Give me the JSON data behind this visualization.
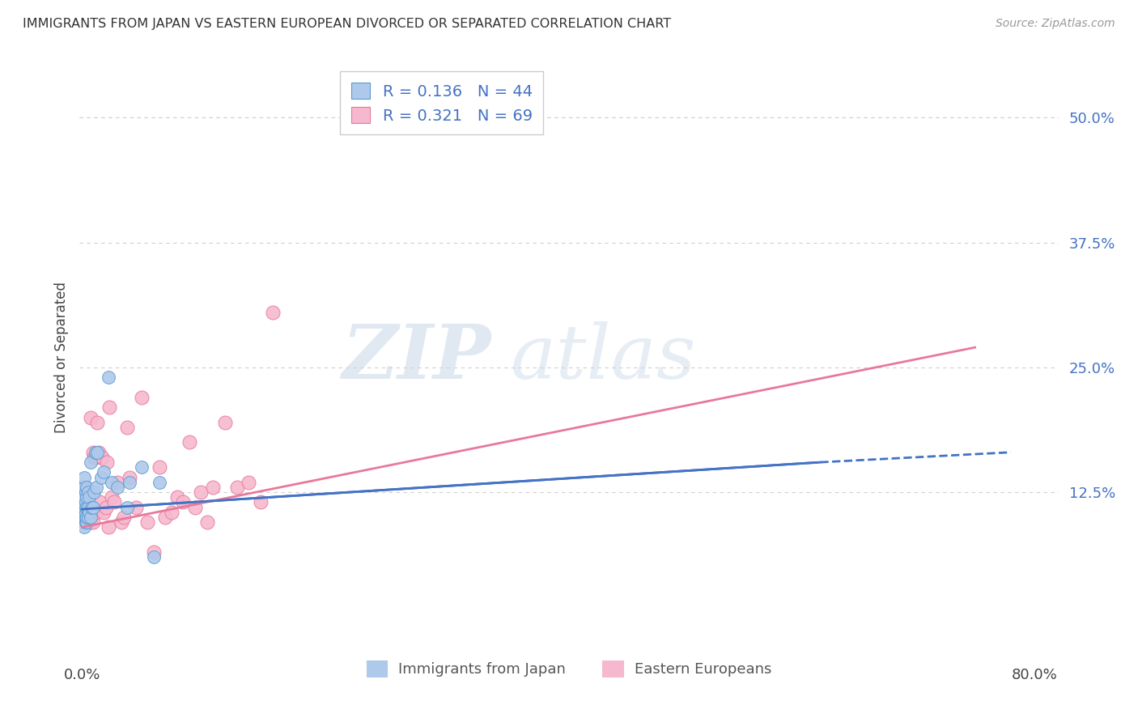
{
  "title": "IMMIGRANTS FROM JAPAN VS EASTERN EUROPEAN DIVORCED OR SEPARATED CORRELATION CHART",
  "source": "Source: ZipAtlas.com",
  "ylabel": "Divorced or Separated",
  "ytick_labels": [
    "12.5%",
    "25.0%",
    "37.5%",
    "50.0%"
  ],
  "ytick_values": [
    0.125,
    0.25,
    0.375,
    0.5
  ],
  "xtick_labels": [
    "0.0%",
    "80.0%"
  ],
  "xtick_values": [
    0.0,
    0.8
  ],
  "xlim": [
    -0.002,
    0.82
  ],
  "ylim": [
    -0.04,
    0.56
  ],
  "series1_label": "Immigrants from Japan",
  "series2_label": "Eastern Europeans",
  "series1_color": "#aec9ea",
  "series2_color": "#f5b8ce",
  "series1_edge_color": "#5b9bd5",
  "series2_edge_color": "#e8799a",
  "series1_line_color": "#4472c4",
  "series2_line_color": "#e8799a",
  "legend_r1": "R = 0.136",
  "legend_n1": "N = 44",
  "legend_r2": "R = 0.321",
  "legend_n2": "N = 69",
  "watermark_zip": "ZIP",
  "watermark_atlas": "atlas",
  "background_color": "#ffffff",
  "grid_color": "#d0d0d0",
  "japan_x": [
    0.001,
    0.001,
    0.001,
    0.001,
    0.002,
    0.002,
    0.002,
    0.002,
    0.002,
    0.002,
    0.003,
    0.003,
    0.003,
    0.003,
    0.003,
    0.003,
    0.004,
    0.004,
    0.004,
    0.004,
    0.004,
    0.005,
    0.005,
    0.005,
    0.006,
    0.006,
    0.007,
    0.007,
    0.008,
    0.009,
    0.01,
    0.011,
    0.012,
    0.013,
    0.016,
    0.018,
    0.022,
    0.025,
    0.03,
    0.038,
    0.04,
    0.05,
    0.06,
    0.065
  ],
  "japan_y": [
    0.105,
    0.11,
    0.115,
    0.12,
    0.09,
    0.1,
    0.11,
    0.12,
    0.13,
    0.14,
    0.095,
    0.1,
    0.105,
    0.11,
    0.115,
    0.125,
    0.095,
    0.1,
    0.11,
    0.12,
    0.13,
    0.1,
    0.11,
    0.125,
    0.105,
    0.12,
    0.1,
    0.155,
    0.11,
    0.11,
    0.125,
    0.165,
    0.13,
    0.165,
    0.14,
    0.145,
    0.24,
    0.135,
    0.13,
    0.11,
    0.135,
    0.15,
    0.06,
    0.135
  ],
  "eastern_x": [
    0.001,
    0.001,
    0.001,
    0.001,
    0.001,
    0.002,
    0.002,
    0.002,
    0.002,
    0.003,
    0.003,
    0.003,
    0.003,
    0.003,
    0.004,
    0.004,
    0.004,
    0.004,
    0.005,
    0.005,
    0.005,
    0.005,
    0.006,
    0.006,
    0.007,
    0.007,
    0.007,
    0.008,
    0.009,
    0.009,
    0.01,
    0.011,
    0.012,
    0.013,
    0.014,
    0.015,
    0.016,
    0.017,
    0.018,
    0.02,
    0.021,
    0.022,
    0.023,
    0.025,
    0.027,
    0.03,
    0.033,
    0.035,
    0.038,
    0.04,
    0.045,
    0.05,
    0.055,
    0.06,
    0.065,
    0.07,
    0.075,
    0.08,
    0.085,
    0.09,
    0.095,
    0.1,
    0.105,
    0.11,
    0.12,
    0.13,
    0.14,
    0.15,
    0.16
  ],
  "eastern_y": [
    0.1,
    0.105,
    0.11,
    0.12,
    0.13,
    0.095,
    0.105,
    0.11,
    0.12,
    0.095,
    0.1,
    0.105,
    0.11,
    0.13,
    0.095,
    0.1,
    0.11,
    0.12,
    0.095,
    0.1,
    0.105,
    0.12,
    0.095,
    0.115,
    0.095,
    0.105,
    0.2,
    0.105,
    0.095,
    0.165,
    0.16,
    0.16,
    0.105,
    0.195,
    0.165,
    0.115,
    0.16,
    0.16,
    0.105,
    0.11,
    0.155,
    0.09,
    0.21,
    0.12,
    0.115,
    0.135,
    0.095,
    0.1,
    0.19,
    0.14,
    0.11,
    0.22,
    0.095,
    0.065,
    0.15,
    0.1,
    0.105,
    0.12,
    0.115,
    0.175,
    0.11,
    0.125,
    0.095,
    0.13,
    0.195,
    0.13,
    0.135,
    0.115,
    0.305
  ]
}
